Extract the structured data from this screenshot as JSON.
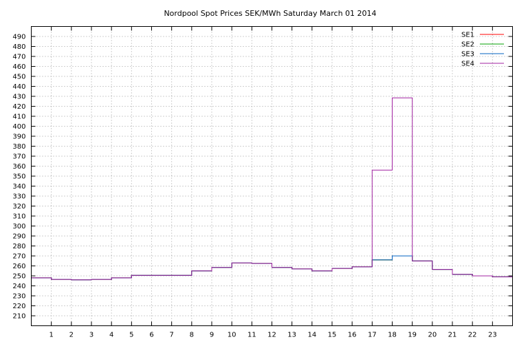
{
  "chart_data": {
    "type": "line",
    "step": "post",
    "title": "Nordpool Spot Prices SEK/MWh Saturday March 01 2014",
    "xlabel": "",
    "ylabel": "",
    "xlim": [
      0,
      24
    ],
    "ylim": [
      200,
      500
    ],
    "x_ticks": [
      "1",
      "2",
      "3",
      "4",
      "5",
      "6",
      "7",
      "8",
      "9",
      "10",
      "11",
      "12",
      "13",
      "14",
      "15",
      "16",
      "17",
      "18",
      "19",
      "20",
      "21",
      "22",
      "23"
    ],
    "y_ticks": [
      "210",
      "220",
      "230",
      "240",
      "250",
      "260",
      "270",
      "280",
      "290",
      "300",
      "310",
      "320",
      "330",
      "340",
      "350",
      "360",
      "370",
      "380",
      "390",
      "400",
      "410",
      "420",
      "430",
      "440",
      "450",
      "460",
      "470",
      "480",
      "490"
    ],
    "grid": true,
    "legend_position": "top-right",
    "hours": [
      0,
      1,
      2,
      3,
      4,
      5,
      6,
      7,
      8,
      9,
      10,
      11,
      12,
      13,
      14,
      15,
      16,
      17,
      18,
      19,
      20,
      21,
      22,
      23
    ],
    "series": [
      {
        "name": "SE1",
        "color": "#ff0000",
        "values": [
          248,
          246.5,
          246,
          246.5,
          248,
          250.5,
          250.5,
          250.5,
          255,
          258.5,
          263,
          262.5,
          258.5,
          257,
          255,
          257.5,
          259,
          266,
          270,
          265,
          256.5,
          251.5,
          250,
          249
        ]
      },
      {
        "name": "SE2",
        "color": "#00a000",
        "values": [
          248,
          246.5,
          246,
          246.5,
          248,
          250.5,
          250.5,
          250.5,
          255,
          258.5,
          263,
          262.5,
          258.5,
          257,
          255,
          257.5,
          259,
          266,
          270,
          265,
          256.5,
          251.5,
          250,
          249
        ]
      },
      {
        "name": "SE3",
        "color": "#0060c0",
        "values": [
          248,
          246.5,
          246,
          246.5,
          248,
          250.5,
          250.5,
          250.5,
          255,
          258.5,
          263,
          262.5,
          258.5,
          257,
          255,
          257.5,
          259,
          266,
          270,
          265,
          256.5,
          251.5,
          250,
          249
        ]
      },
      {
        "name": "SE4",
        "color": "#a020a0",
        "values": [
          248,
          246.5,
          246,
          246.5,
          248,
          250.5,
          250.5,
          250.5,
          255,
          258.5,
          263,
          262.5,
          258.5,
          257,
          255,
          257.5,
          259,
          356,
          428.5,
          265,
          256.5,
          251.5,
          250,
          249
        ]
      }
    ]
  }
}
